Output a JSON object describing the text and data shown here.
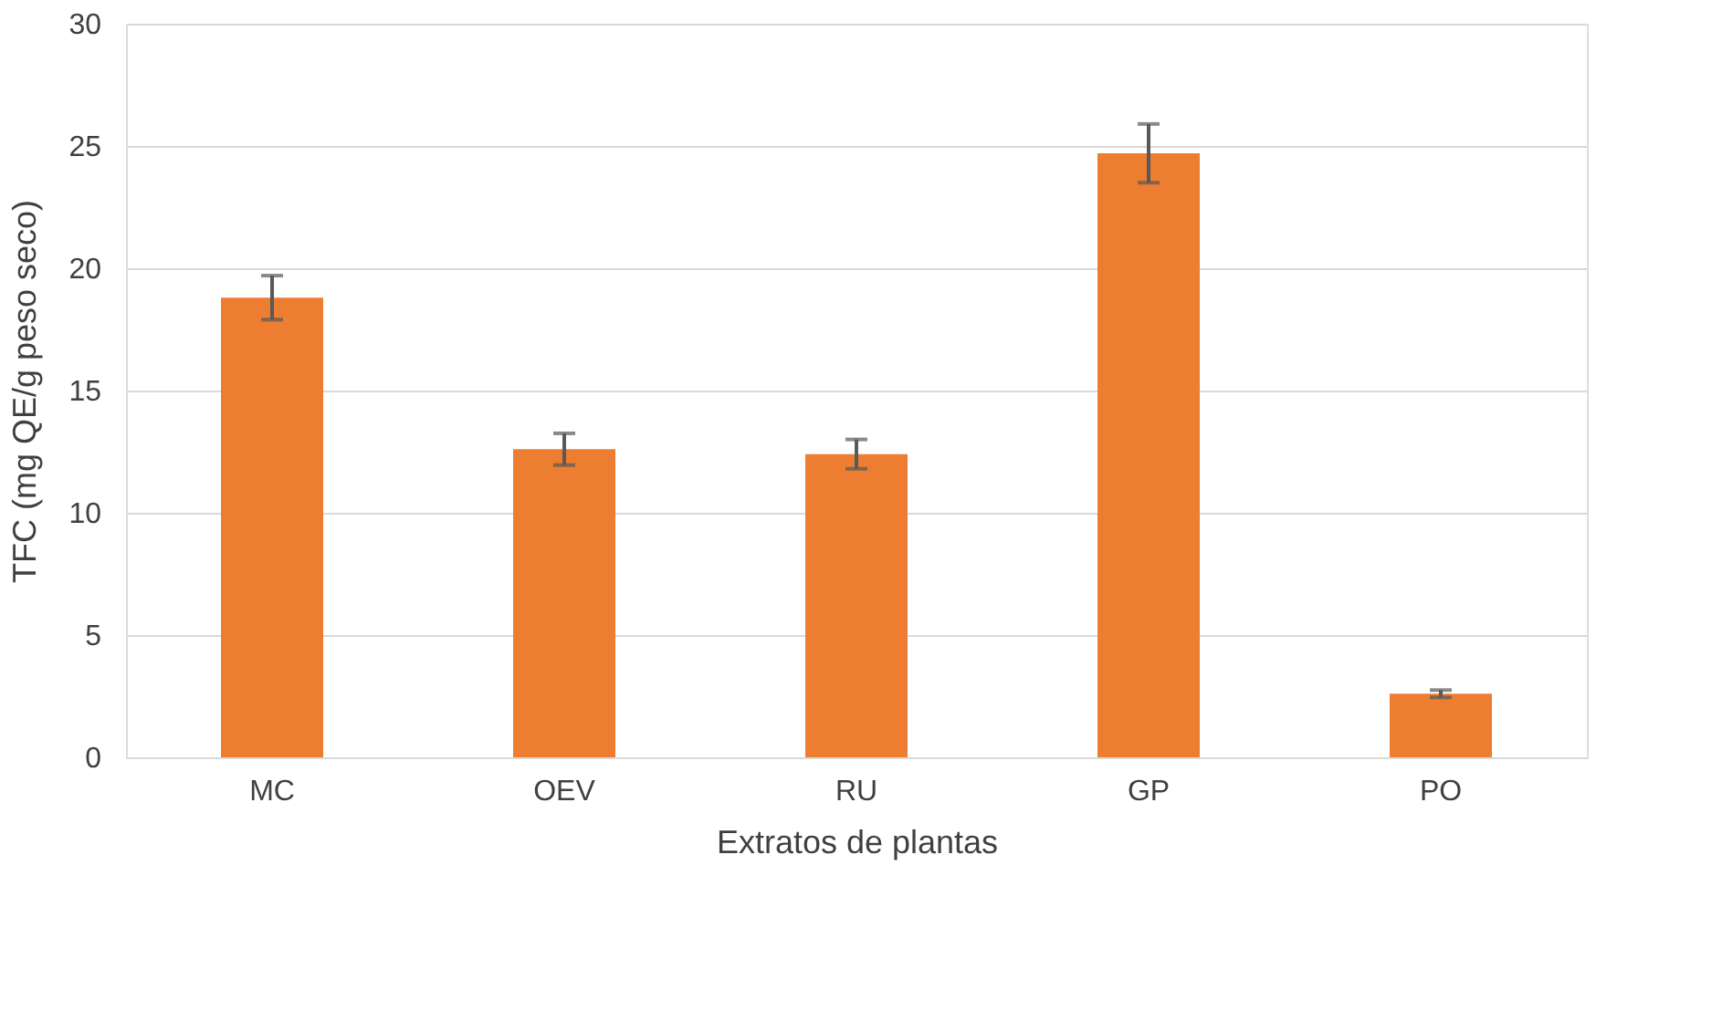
{
  "chart_data": {
    "type": "bar",
    "xlabel": "Extratos de plantas",
    "ylabel": "TFC (mg QE/g peso seco)",
    "categories": [
      "MC",
      "OEV",
      "RU",
      "GP",
      "PO"
    ],
    "values": [
      18.8,
      12.6,
      12.4,
      24.7,
      2.6
    ],
    "errors": [
      0.9,
      0.65,
      0.6,
      1.2,
      0.15
    ],
    "color": "#ed7d31",
    "ylim": [
      0,
      30
    ],
    "yticks": [
      0,
      5,
      10,
      15,
      20,
      25,
      30
    ],
    "grid": "y"
  }
}
